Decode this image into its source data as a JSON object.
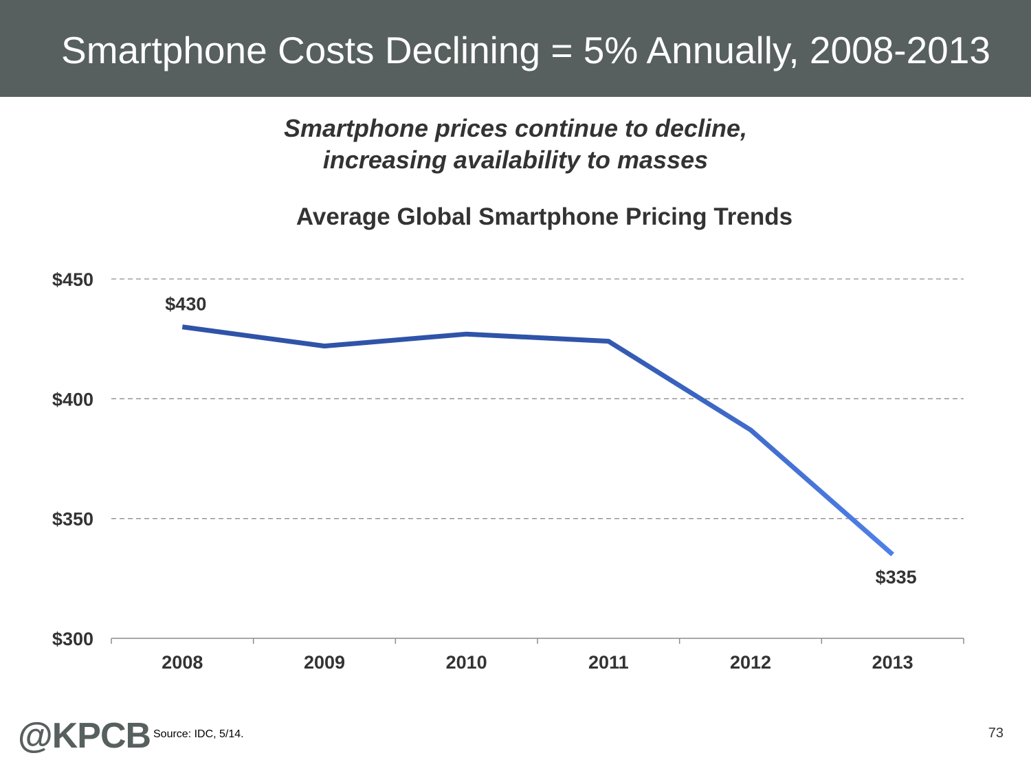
{
  "header": {
    "title": "Smartphone Costs Declining = 5% Annually, 2008-2013"
  },
  "subtitle": {
    "line1": "Smartphone prices continue to decline,",
    "line2": "increasing availability to masses"
  },
  "chart_data": {
    "type": "line",
    "title": "Average Global Smartphone Pricing Trends",
    "xlabel": "",
    "ylabel": "",
    "categories": [
      "2008",
      "2009",
      "2010",
      "2011",
      "2012",
      "2013"
    ],
    "series": [
      {
        "values": [
          430,
          422,
          427,
          424,
          387,
          335
        ]
      }
    ],
    "ylim": [
      300,
      450
    ],
    "yticks": [
      300,
      350,
      400,
      450
    ],
    "ytick_labels": [
      "$300",
      "$350",
      "$400",
      "$450"
    ],
    "data_labels": [
      {
        "index": 0,
        "text": "$430"
      },
      {
        "index": 5,
        "text": "$335"
      }
    ],
    "grid": true,
    "line_colors": [
      "#2f53a8",
      "#4f80ea"
    ]
  },
  "footer": {
    "logo": "@KPCB",
    "source": "Source: IDC, 5/14.",
    "page_number": "73"
  }
}
